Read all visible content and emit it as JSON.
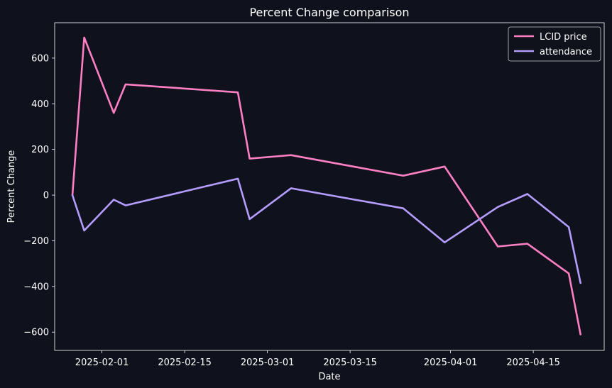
{
  "chart_data": {
    "type": "line",
    "title": "Percent Change comparison",
    "xlabel": "Date",
    "ylabel": "Percent Change",
    "x": [
      "2025-01-27",
      "2025-01-29",
      "2025-02-03",
      "2025-02-05",
      "2025-02-24",
      "2025-02-26",
      "2025-03-05",
      "2025-03-24",
      "2025-03-31",
      "2025-04-09",
      "2025-04-14",
      "2025-04-21",
      "2025-04-23"
    ],
    "series": [
      {
        "name": "LCID price",
        "color": "#ff7fc5",
        "values": [
          0,
          690,
          360,
          485,
          450,
          160,
          175,
          85,
          125,
          -225,
          -213,
          -343,
          -610
        ]
      },
      {
        "name": "attendance",
        "color": "#b49dff",
        "values": [
          0,
          -155,
          -20,
          -45,
          72,
          -105,
          30,
          -58,
          -207,
          -52,
          5,
          -140,
          -385
        ]
      }
    ],
    "xticks": [
      "2025-02-01",
      "2025-02-15",
      "2025-03-01",
      "2025-03-15",
      "2025-04-01",
      "2025-04-15"
    ],
    "yticks": [
      -600,
      -400,
      -200,
      0,
      200,
      400,
      600
    ],
    "xlim": [
      "2025-01-24",
      "2025-04-27"
    ],
    "ylim": [
      -680,
      755
    ],
    "grid": false,
    "legend_position": "top-right",
    "background": "#0f111c"
  }
}
